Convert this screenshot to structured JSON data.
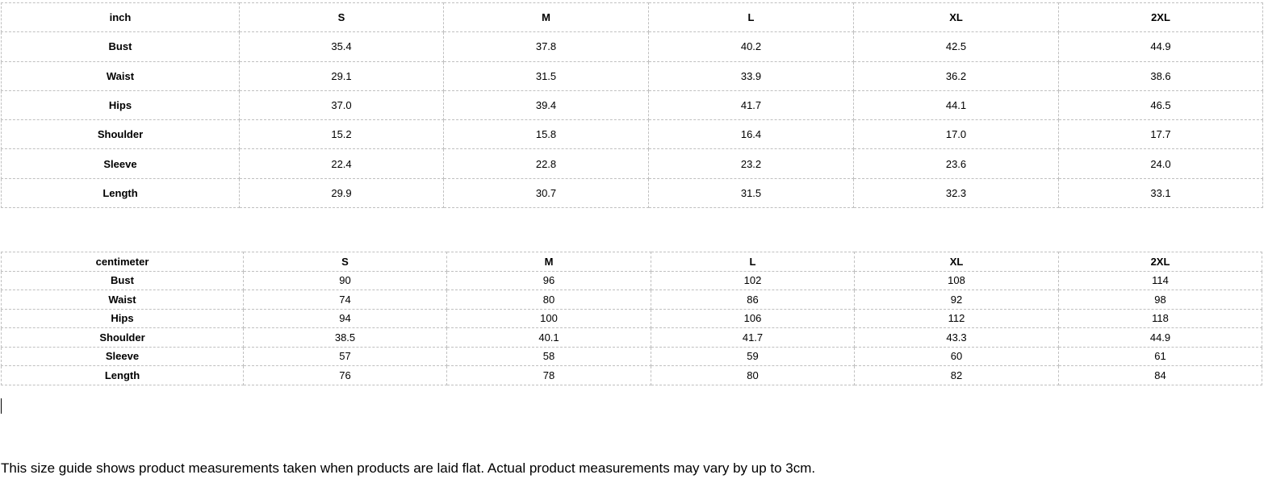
{
  "tables": [
    {
      "id": "t1",
      "headers": [
        "inch",
        "S",
        "M",
        "L",
        "XL",
        "2XL"
      ],
      "rows": [
        [
          "Bust",
          "35.4",
          "37.8",
          "40.2",
          "42.5",
          "44.9"
        ],
        [
          "Waist",
          "29.1",
          "31.5",
          "33.9",
          "36.2",
          "38.6"
        ],
        [
          "Hips",
          "37.0",
          "39.4",
          "41.7",
          "44.1",
          "46.5"
        ],
        [
          "Shoulder",
          "15.2",
          "15.8",
          "16.4",
          "17.0",
          "17.7"
        ],
        [
          "Sleeve",
          "22.4",
          "22.8",
          "23.2",
          "23.6",
          "24.0"
        ],
        [
          "Length",
          "29.9",
          "30.7",
          "31.5",
          "32.3",
          "33.1"
        ]
      ]
    },
    {
      "id": "t2",
      "headers": [
        "centimeter",
        "S",
        "M",
        "L",
        "XL",
        "2XL"
      ],
      "rows": [
        [
          "Bust",
          "90",
          "96",
          "102",
          "108",
          "114"
        ],
        [
          "Waist",
          "74",
          "80",
          "86",
          "92",
          "98"
        ],
        [
          "Hips",
          "94",
          "100",
          "106",
          "112",
          "118"
        ],
        [
          "Shoulder",
          "38.5",
          "40.1",
          "41.7",
          "43.3",
          "44.9"
        ],
        [
          "Sleeve",
          "57",
          "58",
          "59",
          "60",
          "61"
        ],
        [
          "Length",
          "76",
          "78",
          "80",
          "82",
          "84"
        ]
      ]
    }
  ],
  "note": "This size guide shows product measurements taken when products are laid flat. Actual product measurements may vary by up to 3cm."
}
